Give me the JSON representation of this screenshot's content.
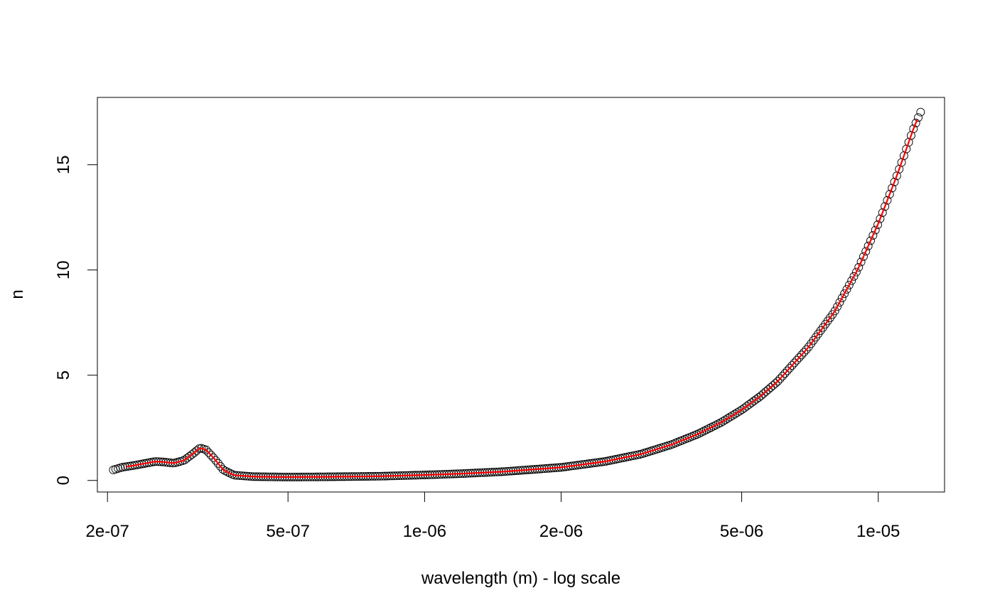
{
  "chart_data": {
    "type": "scatter",
    "title": "",
    "xlabel": "wavelength (m) - log scale",
    "ylabel": "n",
    "x_scale": "log",
    "xlim": [
      1.9e-07,
      1.4e-05
    ],
    "ylim": [
      -0.55,
      18.2
    ],
    "grid": false,
    "legend": "none",
    "x_ticks": [
      {
        "value": 2e-07,
        "label": "2e-07"
      },
      {
        "value": 5e-07,
        "label": "5e-07"
      },
      {
        "value": 1e-06,
        "label": "1e-06"
      },
      {
        "value": 2e-06,
        "label": "2e-06"
      },
      {
        "value": 5e-06,
        "label": "5e-06"
      },
      {
        "value": 1e-05,
        "label": "1e-05"
      }
    ],
    "y_ticks": [
      {
        "value": 0,
        "label": "0"
      },
      {
        "value": 5,
        "label": "5"
      },
      {
        "value": 10,
        "label": "10"
      },
      {
        "value": 15,
        "label": "15"
      }
    ],
    "series": [
      {
        "kind": "points",
        "marker": "open-circle",
        "color": "#000000",
        "x_range": [
          2.06e-07,
          1.24e-05
        ],
        "count": 340,
        "profile": [
          [
            2.06e-07,
            0.5
          ],
          [
            2.15e-07,
            0.62
          ],
          [
            2.3e-07,
            0.72
          ],
          [
            2.45e-07,
            0.83
          ],
          [
            2.55e-07,
            0.9
          ],
          [
            2.65e-07,
            0.88
          ],
          [
            2.8e-07,
            0.82
          ],
          [
            2.95e-07,
            0.95
          ],
          [
            3.1e-07,
            1.3
          ],
          [
            3.2e-07,
            1.55
          ],
          [
            3.3e-07,
            1.45
          ],
          [
            3.45e-07,
            1.0
          ],
          [
            3.6e-07,
            0.5
          ],
          [
            3.8e-07,
            0.25
          ],
          [
            4.2e-07,
            0.18
          ],
          [
            5e-07,
            0.16
          ],
          [
            6e-07,
            0.17
          ],
          [
            8e-07,
            0.2
          ],
          [
            1e-06,
            0.26
          ],
          [
            1.2e-06,
            0.32
          ],
          [
            1.5e-06,
            0.42
          ],
          [
            2e-06,
            0.62
          ],
          [
            2.5e-06,
            0.9
          ],
          [
            3e-06,
            1.25
          ],
          [
            3.5e-06,
            1.7
          ],
          [
            4e-06,
            2.2
          ],
          [
            4.5e-06,
            2.75
          ],
          [
            5e-06,
            3.35
          ],
          [
            5.5e-06,
            4.0
          ],
          [
            6e-06,
            4.7
          ],
          [
            7e-06,
            6.3
          ],
          [
            8e-06,
            8.0
          ],
          [
            9e-06,
            10.0
          ],
          [
            1e-05,
            12.2
          ],
          [
            1.1e-05,
            14.5
          ],
          [
            1.2e-05,
            16.8
          ],
          [
            1.24e-05,
            17.5
          ]
        ]
      },
      {
        "kind": "line",
        "color": "#ff0000",
        "x_range": [
          2.2e-07,
          1.22e-05
        ],
        "follows": "points"
      }
    ]
  }
}
